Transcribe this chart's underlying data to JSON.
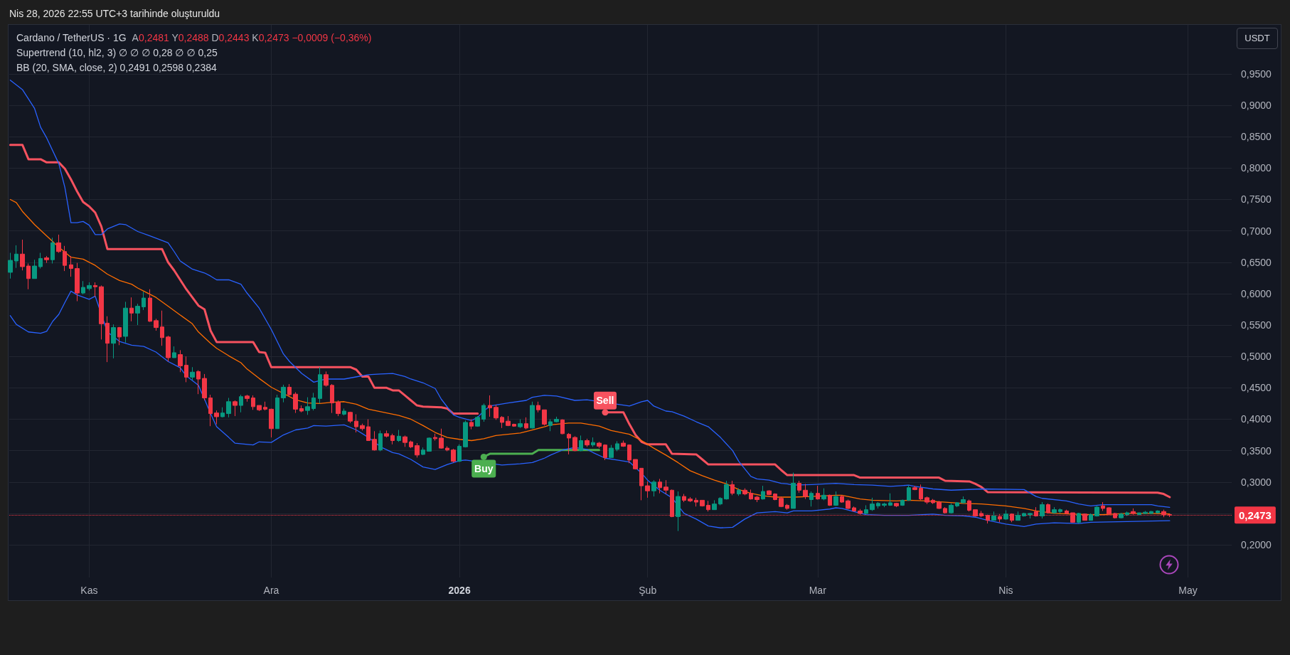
{
  "chart_data": {
    "type": "candlestick",
    "title": "Cardano / TetherUS · 1G",
    "ylabel": "USDT",
    "x": [
      "2025-10-19",
      "2025-10-20",
      "2025-10-21",
      "2025-10-22",
      "2025-10-23",
      "2025-10-24",
      "2025-10-25",
      "2025-10-26",
      "2025-10-27",
      "2025-10-28",
      "2025-10-29",
      "2025-10-30",
      "2025-10-31",
      "2025-11-01",
      "2025-11-02",
      "2025-11-03",
      "2025-11-04",
      "2025-11-05",
      "2025-11-06",
      "2025-11-07",
      "2025-11-08",
      "2025-11-09",
      "2025-11-10",
      "2025-11-11",
      "2025-11-12",
      "2025-11-13",
      "2025-11-14",
      "2025-11-15",
      "2025-11-16",
      "2025-11-17",
      "2025-11-18",
      "2025-11-19",
      "2025-11-20",
      "2025-11-21",
      "2025-11-22",
      "2025-11-23",
      "2025-11-24",
      "2025-11-25",
      "2025-11-26",
      "2025-11-27",
      "2025-11-28",
      "2025-11-29",
      "2025-11-30",
      "2025-12-01",
      "2025-12-02",
      "2025-12-03",
      "2025-12-04",
      "2025-12-05",
      "2025-12-06",
      "2025-12-07",
      "2025-12-08",
      "2025-12-09",
      "2025-12-10",
      "2025-12-11",
      "2025-12-12",
      "2025-12-13",
      "2025-12-14",
      "2025-12-15",
      "2025-12-16",
      "2025-12-17",
      "2025-12-18",
      "2025-12-19",
      "2025-12-20",
      "2025-12-21",
      "2025-12-22",
      "2025-12-23",
      "2025-12-24",
      "2025-12-25",
      "2025-12-26",
      "2025-12-27",
      "2025-12-28",
      "2025-12-29",
      "2025-12-30",
      "2025-12-31",
      "2026-01-01",
      "2026-01-02",
      "2026-01-03",
      "2026-01-04",
      "2026-01-05",
      "2026-01-06",
      "2026-01-07",
      "2026-01-08",
      "2026-01-09",
      "2026-01-10",
      "2026-01-11",
      "2026-01-12",
      "2026-01-13",
      "2026-01-14",
      "2026-01-15",
      "2026-01-16",
      "2026-01-17",
      "2026-01-18",
      "2026-01-19",
      "2026-01-20",
      "2026-01-21",
      "2026-01-22",
      "2026-01-23",
      "2026-01-24",
      "2026-01-25",
      "2026-01-26",
      "2026-01-27",
      "2026-01-28",
      "2026-01-29",
      "2026-01-30",
      "2026-01-31",
      "2026-02-01",
      "2026-02-02",
      "2026-02-03",
      "2026-02-04",
      "2026-02-05",
      "2026-02-06",
      "2026-02-07",
      "2026-02-08",
      "2026-02-09",
      "2026-02-10",
      "2026-02-11",
      "2026-02-12",
      "2026-02-13",
      "2026-02-14",
      "2026-02-15",
      "2026-02-16",
      "2026-02-17",
      "2026-02-18",
      "2026-02-19",
      "2026-02-20",
      "2026-02-21",
      "2026-02-22",
      "2026-02-23",
      "2026-02-24",
      "2026-02-25",
      "2026-02-26",
      "2026-02-27",
      "2026-02-28",
      "2026-03-01",
      "2026-03-02",
      "2026-03-03",
      "2026-03-04",
      "2026-03-05",
      "2026-03-06",
      "2026-03-07",
      "2026-03-08",
      "2026-03-09",
      "2026-03-10",
      "2026-03-11",
      "2026-03-12",
      "2026-03-13",
      "2026-03-14",
      "2026-03-15",
      "2026-03-16",
      "2026-03-17",
      "2026-03-18",
      "2026-03-19",
      "2026-03-20",
      "2026-03-21",
      "2026-03-22",
      "2026-03-23",
      "2026-03-24",
      "2026-03-25",
      "2026-03-26",
      "2026-03-27",
      "2026-03-28",
      "2026-03-29",
      "2026-03-30",
      "2026-03-31",
      "2026-04-01",
      "2026-04-02",
      "2026-04-03",
      "2026-04-04",
      "2026-04-05",
      "2026-04-06",
      "2026-04-07",
      "2026-04-08",
      "2026-04-09",
      "2026-04-10",
      "2026-04-11",
      "2026-04-12",
      "2026-04-13",
      "2026-04-14",
      "2026-04-15",
      "2026-04-16",
      "2026-04-17",
      "2026-04-18",
      "2026-04-19",
      "2026-04-20",
      "2026-04-21",
      "2026-04-22",
      "2026-04-23",
      "2026-04-24",
      "2026-04-25",
      "2026-04-26",
      "2026-04-27",
      "2026-04-28"
    ],
    "ohlc": [
      [
        0.634,
        0.665,
        0.624,
        0.653
      ],
      [
        0.652,
        0.677,
        0.641,
        0.663
      ],
      [
        0.663,
        0.686,
        0.637,
        0.643
      ],
      [
        0.644,
        0.648,
        0.607,
        0.624
      ],
      [
        0.624,
        0.654,
        0.624,
        0.644
      ],
      [
        0.643,
        0.665,
        0.64,
        0.656
      ],
      [
        0.657,
        0.66,
        0.649,
        0.654
      ],
      [
        0.654,
        0.689,
        0.648,
        0.681
      ],
      [
        0.681,
        0.694,
        0.665,
        0.667
      ],
      [
        0.667,
        0.676,
        0.636,
        0.645
      ],
      [
        0.646,
        0.66,
        0.627,
        0.64
      ],
      [
        0.64,
        0.649,
        0.588,
        0.601
      ],
      [
        0.601,
        0.62,
        0.599,
        0.61
      ],
      [
        0.608,
        0.618,
        0.605,
        0.613
      ],
      [
        0.613,
        0.618,
        0.595,
        0.611
      ],
      [
        0.611,
        0.613,
        0.527,
        0.552
      ],
      [
        0.553,
        0.564,
        0.491,
        0.521
      ],
      [
        0.521,
        0.551,
        0.497,
        0.546
      ],
      [
        0.546,
        0.547,
        0.518,
        0.531
      ],
      [
        0.532,
        0.587,
        0.522,
        0.577
      ],
      [
        0.577,
        0.594,
        0.556,
        0.569
      ],
      [
        0.569,
        0.584,
        0.55,
        0.58
      ],
      [
        0.579,
        0.603,
        0.574,
        0.593
      ],
      [
        0.593,
        0.607,
        0.555,
        0.556
      ],
      [
        0.557,
        0.56,
        0.541,
        0.546
      ],
      [
        0.547,
        0.573,
        0.517,
        0.53
      ],
      [
        0.531,
        0.533,
        0.492,
        0.498
      ],
      [
        0.498,
        0.516,
        0.498,
        0.506
      ],
      [
        0.503,
        0.51,
        0.475,
        0.485
      ],
      [
        0.486,
        0.5,
        0.459,
        0.467
      ],
      [
        0.467,
        0.483,
        0.462,
        0.475
      ],
      [
        0.476,
        0.478,
        0.44,
        0.464
      ],
      [
        0.465,
        0.472,
        0.43,
        0.434
      ],
      [
        0.434,
        0.439,
        0.389,
        0.409
      ],
      [
        0.41,
        0.414,
        0.392,
        0.404
      ],
      [
        0.404,
        0.419,
        0.403,
        0.41
      ],
      [
        0.409,
        0.434,
        0.403,
        0.428
      ],
      [
        0.428,
        0.43,
        0.405,
        0.422
      ],
      [
        0.422,
        0.439,
        0.411,
        0.436
      ],
      [
        0.437,
        0.439,
        0.428,
        0.433
      ],
      [
        0.434,
        0.438,
        0.415,
        0.42
      ],
      [
        0.422,
        0.422,
        0.413,
        0.415
      ],
      [
        0.419,
        0.428,
        0.414,
        0.416
      ],
      [
        0.416,
        0.417,
        0.371,
        0.385
      ],
      [
        0.385,
        0.439,
        0.385,
        0.434
      ],
      [
        0.434,
        0.455,
        0.427,
        0.451
      ],
      [
        0.451,
        0.456,
        0.437,
        0.439
      ],
      [
        0.44,
        0.443,
        0.41,
        0.416
      ],
      [
        0.417,
        0.422,
        0.411,
        0.413
      ],
      [
        0.414,
        0.435,
        0.407,
        0.42
      ],
      [
        0.417,
        0.442,
        0.414,
        0.434
      ],
      [
        0.433,
        0.483,
        0.425,
        0.471
      ],
      [
        0.471,
        0.476,
        0.452,
        0.454
      ],
      [
        0.454,
        0.456,
        0.41,
        0.426
      ],
      [
        0.427,
        0.43,
        0.405,
        0.409
      ],
      [
        0.408,
        0.417,
        0.406,
        0.413
      ],
      [
        0.411,
        0.412,
        0.394,
        0.397
      ],
      [
        0.397,
        0.408,
        0.379,
        0.388
      ],
      [
        0.39,
        0.393,
        0.382,
        0.385
      ],
      [
        0.388,
        0.4,
        0.366,
        0.366
      ],
      [
        0.368,
        0.381,
        0.35,
        0.351
      ],
      [
        0.351,
        0.382,
        0.349,
        0.377
      ],
      [
        0.377,
        0.382,
        0.371,
        0.373
      ],
      [
        0.374,
        0.377,
        0.36,
        0.366
      ],
      [
        0.366,
        0.383,
        0.364,
        0.373
      ],
      [
        0.372,
        0.374,
        0.356,
        0.363
      ],
      [
        0.364,
        0.366,
        0.354,
        0.356
      ],
      [
        0.358,
        0.362,
        0.339,
        0.343
      ],
      [
        0.344,
        0.355,
        0.343,
        0.351
      ],
      [
        0.349,
        0.371,
        0.349,
        0.37
      ],
      [
        0.371,
        0.377,
        0.366,
        0.369
      ],
      [
        0.37,
        0.385,
        0.353,
        0.354
      ],
      [
        0.354,
        0.357,
        0.349,
        0.351
      ],
      [
        0.351,
        0.353,
        0.331,
        0.333
      ],
      [
        0.333,
        0.36,
        0.332,
        0.357
      ],
      [
        0.356,
        0.398,
        0.355,
        0.395
      ],
      [
        0.395,
        0.4,
        0.384,
        0.389
      ],
      [
        0.389,
        0.405,
        0.388,
        0.403
      ],
      [
        0.4,
        0.425,
        0.396,
        0.422
      ],
      [
        0.422,
        0.438,
        0.404,
        0.418
      ],
      [
        0.419,
        0.423,
        0.399,
        0.402
      ],
      [
        0.403,
        0.405,
        0.386,
        0.395
      ],
      [
        0.397,
        0.405,
        0.389,
        0.39
      ],
      [
        0.392,
        0.393,
        0.388,
        0.389
      ],
      [
        0.388,
        0.4,
        0.386,
        0.393
      ],
      [
        0.393,
        0.403,
        0.384,
        0.386
      ],
      [
        0.386,
        0.428,
        0.385,
        0.422
      ],
      [
        0.422,
        0.428,
        0.411,
        0.415
      ],
      [
        0.415,
        0.415,
        0.39,
        0.392
      ],
      [
        0.39,
        0.4,
        0.381,
        0.396
      ],
      [
        0.396,
        0.404,
        0.395,
        0.4
      ],
      [
        0.399,
        0.4,
        0.376,
        0.377
      ],
      [
        0.376,
        0.378,
        0.344,
        0.37
      ],
      [
        0.371,
        0.373,
        0.349,
        0.35
      ],
      [
        0.35,
        0.374,
        0.349,
        0.366
      ],
      [
        0.366,
        0.369,
        0.356,
        0.359
      ],
      [
        0.359,
        0.371,
        0.356,
        0.363
      ],
      [
        0.362,
        0.364,
        0.354,
        0.357
      ],
      [
        0.359,
        0.36,
        0.335,
        0.339
      ],
      [
        0.339,
        0.359,
        0.339,
        0.354
      ],
      [
        0.352,
        0.365,
        0.349,
        0.361
      ],
      [
        0.362,
        0.366,
        0.356,
        0.357
      ],
      [
        0.359,
        0.36,
        0.33,
        0.335
      ],
      [
        0.336,
        0.336,
        0.32,
        0.321
      ],
      [
        0.322,
        0.322,
        0.271,
        0.294
      ],
      [
        0.294,
        0.301,
        0.275,
        0.286
      ],
      [
        0.286,
        0.303,
        0.277,
        0.3
      ],
      [
        0.3,
        0.305,
        0.282,
        0.291
      ],
      [
        0.292,
        0.303,
        0.281,
        0.287
      ],
      [
        0.287,
        0.288,
        0.244,
        0.245
      ],
      [
        0.245,
        0.285,
        0.222,
        0.277
      ],
      [
        0.277,
        0.281,
        0.268,
        0.271
      ],
      [
        0.273,
        0.276,
        0.268,
        0.27
      ],
      [
        0.271,
        0.275,
        0.261,
        0.268
      ],
      [
        0.271,
        0.271,
        0.261,
        0.262
      ],
      [
        0.263,
        0.27,
        0.253,
        0.256
      ],
      [
        0.256,
        0.271,
        0.256,
        0.265
      ],
      [
        0.265,
        0.276,
        0.263,
        0.274
      ],
      [
        0.273,
        0.302,
        0.272,
        0.296
      ],
      [
        0.296,
        0.302,
        0.279,
        0.282
      ],
      [
        0.281,
        0.29,
        0.278,
        0.287
      ],
      [
        0.287,
        0.29,
        0.279,
        0.281
      ],
      [
        0.282,
        0.288,
        0.272,
        0.273
      ],
      [
        0.276,
        0.278,
        0.268,
        0.272
      ],
      [
        0.273,
        0.294,
        0.272,
        0.285
      ],
      [
        0.286,
        0.287,
        0.279,
        0.28
      ],
      [
        0.281,
        0.282,
        0.271,
        0.272
      ],
      [
        0.274,
        0.277,
        0.26,
        0.261
      ],
      [
        0.263,
        0.265,
        0.256,
        0.258
      ],
      [
        0.258,
        0.315,
        0.258,
        0.298
      ],
      [
        0.298,
        0.302,
        0.283,
        0.287
      ],
      [
        0.287,
        0.297,
        0.273,
        0.277
      ],
      [
        0.272,
        0.285,
        0.261,
        0.282
      ],
      [
        0.282,
        0.294,
        0.272,
        0.273
      ],
      [
        0.273,
        0.29,
        0.271,
        0.279
      ],
      [
        0.279,
        0.28,
        0.262,
        0.263
      ],
      [
        0.263,
        0.285,
        0.262,
        0.277
      ],
      [
        0.277,
        0.279,
        0.267,
        0.268
      ],
      [
        0.27,
        0.272,
        0.257,
        0.258
      ],
      [
        0.259,
        0.261,
        0.253,
        0.254
      ],
      [
        0.254,
        0.257,
        0.248,
        0.25
      ],
      [
        0.25,
        0.263,
        0.249,
        0.256
      ],
      [
        0.256,
        0.275,
        0.254,
        0.265
      ],
      [
        0.262,
        0.268,
        0.258,
        0.266
      ],
      [
        0.263,
        0.267,
        0.26,
        0.265
      ],
      [
        0.263,
        0.282,
        0.262,
        0.267
      ],
      [
        0.266,
        0.267,
        0.26,
        0.262
      ],
      [
        0.263,
        0.272,
        0.262,
        0.271
      ],
      [
        0.271,
        0.295,
        0.27,
        0.291
      ],
      [
        0.291,
        0.294,
        0.287,
        0.288
      ],
      [
        0.29,
        0.296,
        0.271,
        0.273
      ],
      [
        0.275,
        0.277,
        0.265,
        0.268
      ],
      [
        0.271,
        0.273,
        0.265,
        0.267
      ],
      [
        0.268,
        0.27,
        0.257,
        0.258
      ],
      [
        0.258,
        0.26,
        0.25,
        0.251
      ],
      [
        0.251,
        0.266,
        0.25,
        0.263
      ],
      [
        0.262,
        0.268,
        0.26,
        0.267
      ],
      [
        0.267,
        0.277,
        0.266,
        0.272
      ],
      [
        0.27,
        0.272,
        0.253,
        0.255
      ],
      [
        0.256,
        0.256,
        0.245,
        0.246
      ],
      [
        0.25,
        0.254,
        0.244,
        0.246
      ],
      [
        0.247,
        0.248,
        0.234,
        0.239
      ],
      [
        0.239,
        0.253,
        0.239,
        0.246
      ],
      [
        0.245,
        0.249,
        0.236,
        0.241
      ],
      [
        0.241,
        0.255,
        0.24,
        0.249
      ],
      [
        0.249,
        0.25,
        0.236,
        0.239
      ],
      [
        0.239,
        0.253,
        0.239,
        0.247
      ],
      [
        0.246,
        0.251,
        0.245,
        0.25
      ],
      [
        0.248,
        0.251,
        0.242,
        0.25
      ],
      [
        0.253,
        0.26,
        0.245,
        0.246
      ],
      [
        0.246,
        0.268,
        0.242,
        0.264
      ],
      [
        0.264,
        0.266,
        0.25,
        0.251
      ],
      [
        0.251,
        0.26,
        0.25,
        0.256
      ],
      [
        0.253,
        0.258,
        0.25,
        0.256
      ],
      [
        0.254,
        0.256,
        0.249,
        0.25
      ],
      [
        0.251,
        0.251,
        0.235,
        0.236
      ],
      [
        0.236,
        0.251,
        0.234,
        0.25
      ],
      [
        0.249,
        0.25,
        0.239,
        0.239
      ],
      [
        0.239,
        0.25,
        0.239,
        0.248
      ],
      [
        0.246,
        0.262,
        0.245,
        0.26
      ],
      [
        0.262,
        0.268,
        0.254,
        0.258
      ],
      [
        0.259,
        0.26,
        0.248,
        0.249
      ],
      [
        0.25,
        0.251,
        0.242,
        0.243
      ],
      [
        0.243,
        0.251,
        0.242,
        0.249
      ],
      [
        0.248,
        0.253,
        0.246,
        0.251
      ],
      [
        0.253,
        0.258,
        0.248,
        0.25
      ],
      [
        0.248,
        0.251,
        0.247,
        0.251
      ],
      [
        0.25,
        0.254,
        0.249,
        0.252
      ],
      [
        0.25,
        0.254,
        0.249,
        0.253
      ],
      [
        0.251,
        0.255,
        0.25,
        0.254
      ],
      [
        0.253,
        0.256,
        0.244,
        0.2482
      ],
      [
        0.2481,
        0.2488,
        0.2443,
        0.2473
      ]
    ],
    "colors": [
      "#089981",
      "#089981",
      "#f23645",
      "#f23645",
      "#089981",
      "#089981",
      "#f23645",
      "#089981",
      "#f23645",
      "#f23645",
      "#f23645",
      "#f23645",
      "#089981",
      "#089981",
      "#f23645",
      "#f23645",
      "#f23645",
      "#089981",
      "#f23645",
      "#089981",
      "#f23645",
      "#089981",
      "#089981",
      "#f23645",
      "#f23645",
      "#f23645",
      "#f23645",
      "#089981",
      "#f23645",
      "#f23645",
      "#089981",
      "#f23645",
      "#f23645",
      "#f23645",
      "#f23645",
      "#089981",
      "#089981",
      "#f23645",
      "#089981",
      "#f23645",
      "#f23645",
      "#f23645",
      "#f23645",
      "#f23645",
      "#089981",
      "#089981",
      "#f23645",
      "#f23645",
      "#f23645",
      "#089981",
      "#089981",
      "#089981",
      "#f23645",
      "#f23645",
      "#f23645",
      "#089981",
      "#f23645",
      "#f23645",
      "#f23645",
      "#f23645",
      "#f23645",
      "#089981",
      "#f23645",
      "#f23645",
      "#089981",
      "#f23645",
      "#f23645",
      "#f23645",
      "#089981",
      "#089981",
      "#f23645",
      "#f23645",
      "#f23645",
      "#f23645",
      "#089981",
      "#089981",
      "#f23645",
      "#089981",
      "#089981",
      "#f23645",
      "#f23645",
      "#f23645",
      "#f23645",
      "#f23645",
      "#089981",
      "#f23645",
      "#089981",
      "#f23645",
      "#f23645",
      "#089981",
      "#089981",
      "#f23645",
      "#f23645",
      "#f23645",
      "#089981",
      "#f23645",
      "#089981",
      "#f23645",
      "#f23645",
      "#089981",
      "#089981",
      "#f23645",
      "#f23645",
      "#f23645",
      "#f23645",
      "#f23645",
      "#089981",
      "#f23645",
      "#f23645",
      "#f23645",
      "#089981",
      "#f23645",
      "#f23645",
      "#f23645",
      "#f23645",
      "#f23645",
      "#089981",
      "#089981",
      "#089981",
      "#f23645",
      "#089981",
      "#f23645",
      "#f23645",
      "#f23645",
      "#089981",
      "#f23645",
      "#f23645",
      "#f23645",
      "#f23645",
      "#089981",
      "#f23645",
      "#f23645",
      "#089981",
      "#f23645",
      "#089981",
      "#f23645",
      "#089981",
      "#f23645",
      "#f23645",
      "#f23645",
      "#f23645",
      "#089981",
      "#089981",
      "#089981",
      "#089981",
      "#089981",
      "#f23645",
      "#089981",
      "#089981",
      "#f23645",
      "#f23645",
      "#f23645",
      "#f23645",
      "#f23645",
      "#f23645",
      "#089981",
      "#089981",
      "#089981",
      "#f23645",
      "#f23645",
      "#f23645",
      "#f23645",
      "#089981",
      "#f23645",
      "#089981",
      "#f23645",
      "#089981",
      "#089981",
      "#089981",
      "#f23645",
      "#089981",
      "#f23645",
      "#089981",
      "#089981",
      "#f23645",
      "#f23645",
      "#089981",
      "#f23645",
      "#089981",
      "#089981",
      "#f23645",
      "#f23645",
      "#f23645",
      "#089981",
      "#089981",
      "#f23645",
      "#089981",
      "#089981",
      "#089981",
      "#089981",
      "#f23645",
      "#f23645"
    ],
    "series": [
      {
        "type": "line",
        "color": "#f7525f",
        "x": [
          "2025-10-19",
          "2025-10-21",
          "2025-10-22",
          "2025-10-24",
          "2025-10-25",
          "2025-10-27",
          "2025-10-28",
          "2025-10-29",
          "2025-10-30",
          "2025-10-31",
          "2025-11-01",
          "2025-11-02",
          "2025-11-03",
          "2025-11-04",
          "2025-11-13",
          "2025-11-14",
          "2025-11-15",
          "2025-11-16",
          "2025-11-17",
          "2025-11-18",
          "2025-11-19",
          "2025-11-20",
          "2025-11-21",
          "2025-11-22",
          "2025-11-28",
          "2025-11-29",
          "2025-11-30",
          "2025-12-01",
          "2025-12-14",
          "2025-12-15",
          "2025-12-16",
          "2025-12-17",
          "2025-12-18",
          "2025-12-20",
          "2025-12-21",
          "2025-12-22",
          "2025-12-23",
          "2025-12-24",
          "2025-12-25",
          "2025-12-26",
          "2025-12-29",
          "2025-12-30",
          "2025-12-31",
          "2026-01-04",
          "2026-01-05",
          "2026-01-25",
          "2026-01-28",
          "2026-01-29",
          "2026-01-30",
          "2026-01-31",
          "2026-02-01",
          "2026-02-04",
          "2026-02-05",
          "2026-02-09",
          "2026-02-10",
          "2026-02-11",
          "2026-02-22",
          "2026-02-23",
          "2026-02-24",
          "2026-03-07",
          "2026-03-08",
          "2026-03-21",
          "2026-03-22",
          "2026-03-26",
          "2026-03-27",
          "2026-03-28",
          "2026-03-29",
          "2026-04-26",
          "2026-04-27",
          "2026-04-28"
        ],
        "values": [
          0.837,
          0.837,
          0.814,
          0.814,
          0.809,
          0.809,
          0.799,
          0.782,
          0.763,
          0.746,
          0.739,
          0.729,
          0.707,
          0.671,
          0.671,
          0.65,
          0.637,
          0.622,
          0.607,
          0.594,
          0.581,
          0.575,
          0.541,
          0.523,
          0.523,
          0.507,
          0.506,
          0.483,
          0.483,
          0.479,
          0.468,
          0.468,
          0.45,
          0.45,
          0.446,
          0.446,
          0.438,
          0.43,
          0.422,
          0.42,
          0.419,
          0.417,
          0.409,
          0.409,
          null,
          0.411,
          0.411,
          0.392,
          0.375,
          0.364,
          0.36,
          0.36,
          0.345,
          0.344,
          0.336,
          0.328,
          0.328,
          0.319,
          0.311,
          0.311,
          0.307,
          0.307,
          0.302,
          0.301,
          0.297,
          0.292,
          0.284,
          0.283,
          0.281,
          0.276
        ]
      },
      {
        "type": "line",
        "color": "#4caf50",
        "x": [
          "2026-01-05",
          "2026-01-06",
          "2026-01-13",
          "2026-01-14",
          "2026-01-24"
        ],
        "values": [
          0.34,
          0.345,
          0.345,
          0.351,
          0.351
        ]
      },
      {
        "type": "line",
        "color": "#2962ff",
        "x": [
          "2025-10-19",
          "2025-10-21",
          "2025-10-23",
          "2025-10-24",
          "2025-10-25",
          "2025-10-27",
          "2025-10-28",
          "2025-10-29",
          "2025-10-30",
          "2025-10-31",
          "2025-11-01",
          "2025-11-02",
          "2025-11-03",
          "2025-11-04",
          "2025-11-06",
          "2025-11-07",
          "2025-11-09",
          "2025-11-11",
          "2025-11-14",
          "2025-11-15",
          "2025-11-16",
          "2025-11-18",
          "2025-11-20",
          "2025-11-21",
          "2025-11-22",
          "2025-11-24",
          "2025-11-26",
          "2025-11-27",
          "2025-11-29",
          "2025-12-01",
          "2025-12-03",
          "2025-12-04",
          "2025-12-06",
          "2025-12-08",
          "2025-12-10",
          "2025-12-13",
          "2025-12-17",
          "2025-12-19",
          "2025-12-21",
          "2025-12-23",
          "2025-12-24",
          "2025-12-26",
          "2025-12-28",
          "2025-12-29",
          "2025-12-31",
          "2026-01-01",
          "2026-01-03",
          "2026-01-04",
          "2026-01-05",
          "2026-01-06",
          "2026-01-09",
          "2026-01-12",
          "2026-01-13",
          "2026-01-15",
          "2026-01-17",
          "2026-01-20",
          "2026-01-22",
          "2026-01-29",
          "2026-01-31",
          "2026-02-01",
          "2026-02-02",
          "2026-02-04",
          "2026-02-05",
          "2026-02-07",
          "2026-02-09",
          "2026-02-11",
          "2026-02-13",
          "2026-02-15",
          "2026-02-16",
          "2026-02-18",
          "2026-02-19",
          "2026-02-21",
          "2026-02-23",
          "2026-02-24",
          "2026-02-25",
          "2026-02-28",
          "2026-03-04",
          "2026-03-07",
          "2026-03-10",
          "2026-03-13",
          "2026-03-16",
          "2026-03-17",
          "2026-03-20",
          "2026-03-23",
          "2026-03-28",
          "2026-04-04",
          "2026-04-06",
          "2026-04-07",
          "2026-04-11",
          "2026-04-13",
          "2026-04-15",
          "2026-04-17",
          "2026-04-25",
          "2026-04-26",
          "2026-04-28"
        ],
        "values": [
          0.94,
          0.925,
          0.895,
          0.865,
          0.848,
          0.807,
          0.769,
          0.713,
          0.713,
          0.715,
          0.709,
          0.694,
          0.694,
          0.703,
          0.711,
          0.71,
          0.699,
          0.692,
          0.681,
          0.667,
          0.652,
          0.639,
          0.633,
          0.628,
          0.622,
          0.622,
          0.615,
          0.601,
          0.577,
          0.543,
          0.504,
          0.492,
          0.473,
          0.459,
          0.464,
          0.464,
          0.471,
          0.472,
          0.473,
          0.468,
          0.464,
          0.458,
          0.449,
          0.432,
          0.407,
          0.403,
          0.398,
          0.403,
          0.413,
          0.421,
          0.426,
          0.43,
          0.435,
          0.438,
          0.437,
          0.43,
          0.431,
          0.421,
          0.428,
          0.43,
          0.421,
          0.413,
          0.412,
          0.405,
          0.396,
          0.388,
          0.371,
          0.35,
          0.333,
          0.309,
          0.305,
          0.303,
          0.298,
          0.297,
          0.295,
          0.296,
          0.298,
          0.296,
          0.295,
          0.293,
          0.295,
          0.293,
          0.289,
          0.287,
          0.289,
          0.288,
          0.277,
          0.274,
          0.27,
          0.265,
          0.262,
          0.264,
          0.264,
          0.262,
          0.2598
        ]
      },
      {
        "type": "line",
        "color": "#ff6d00",
        "x": [
          "2025-10-19",
          "2025-10-20",
          "2025-10-21",
          "2025-10-23",
          "2025-10-25",
          "2025-10-27",
          "2025-10-29",
          "2025-10-31",
          "2025-11-02",
          "2025-11-04",
          "2025-11-06",
          "2025-11-08",
          "2025-11-09",
          "2025-11-10",
          "2025-11-12",
          "2025-11-14",
          "2025-11-16",
          "2025-11-18",
          "2025-11-19",
          "2025-11-21",
          "2025-11-22",
          "2025-11-24",
          "2025-11-26",
          "2025-11-27",
          "2025-11-29",
          "2025-12-01",
          "2025-12-03",
          "2025-12-05",
          "2025-12-07",
          "2025-12-09",
          "2025-12-11",
          "2025-12-13",
          "2025-12-15",
          "2025-12-17",
          "2025-12-20",
          "2025-12-22",
          "2025-12-24",
          "2025-12-26",
          "2025-12-28",
          "2025-12-30",
          "2026-01-01",
          "2026-01-03",
          "2026-01-05",
          "2026-01-07",
          "2026-01-09",
          "2026-01-11",
          "2026-01-13",
          "2026-01-15",
          "2026-01-16",
          "2026-01-19",
          "2026-01-21",
          "2026-01-24",
          "2026-01-26",
          "2026-01-29",
          "2026-01-31",
          "2026-02-02",
          "2026-02-04",
          "2026-02-06",
          "2026-02-08",
          "2026-02-10",
          "2026-02-12",
          "2026-02-14",
          "2026-02-16",
          "2026-02-18",
          "2026-02-20",
          "2026-02-22",
          "2026-02-25",
          "2026-02-28",
          "2026-03-04",
          "2026-03-05",
          "2026-03-08",
          "2026-03-10",
          "2026-03-14",
          "2026-03-16",
          "2026-03-19",
          "2026-03-22",
          "2026-03-25",
          "2026-03-28",
          "2026-04-01",
          "2026-04-04",
          "2026-04-06",
          "2026-04-09",
          "2026-04-12",
          "2026-04-15",
          "2026-04-17",
          "2026-04-21",
          "2026-04-25",
          "2026-04-28"
        ],
        "values": [
          0.75,
          0.745,
          0.731,
          0.71,
          0.692,
          0.674,
          0.658,
          0.655,
          0.645,
          0.631,
          0.621,
          0.615,
          0.609,
          0.604,
          0.594,
          0.58,
          0.566,
          0.552,
          0.539,
          0.521,
          0.513,
          0.501,
          0.49,
          0.48,
          0.465,
          0.451,
          0.441,
          0.431,
          0.426,
          0.425,
          0.427,
          0.428,
          0.424,
          0.416,
          0.41,
          0.406,
          0.4,
          0.39,
          0.379,
          0.371,
          0.368,
          0.366,
          0.369,
          0.374,
          0.376,
          0.378,
          0.383,
          0.388,
          0.391,
          0.394,
          0.394,
          0.389,
          0.382,
          0.376,
          0.366,
          0.354,
          0.343,
          0.331,
          0.318,
          0.31,
          0.303,
          0.297,
          0.288,
          0.282,
          0.278,
          0.276,
          0.276,
          0.277,
          0.279,
          0.279,
          0.273,
          0.271,
          0.27,
          0.271,
          0.27,
          0.268,
          0.266,
          0.265,
          0.262,
          0.258,
          0.254,
          0.25,
          0.249,
          0.248,
          0.248,
          0.25,
          0.25,
          0.2491
        ]
      },
      {
        "type": "line",
        "color": "#2962ff",
        "x": [
          "2025-10-19",
          "2025-10-20",
          "2025-10-22",
          "2025-10-24",
          "2025-10-25",
          "2025-10-26",
          "2025-10-27",
          "2025-10-28",
          "2025-10-29",
          "2025-10-30",
          "2025-11-01",
          "2025-11-02",
          "2025-11-04",
          "2025-11-06",
          "2025-11-08",
          "2025-11-10",
          "2025-11-12",
          "2025-11-14",
          "2025-11-16",
          "2025-11-17",
          "2025-11-19",
          "2025-11-20",
          "2025-11-21",
          "2025-11-22",
          "2025-11-24",
          "2025-11-25",
          "2025-11-28",
          "2025-11-29",
          "2025-12-01",
          "2025-12-03",
          "2025-12-05",
          "2025-12-07",
          "2025-12-08",
          "2025-12-10",
          "2025-12-13",
          "2025-12-15",
          "2025-12-17",
          "2025-12-19",
          "2025-12-21",
          "2025-12-22",
          "2025-12-24",
          "2025-12-26",
          "2025-12-28",
          "2025-12-30",
          "2026-01-01",
          "2026-01-02",
          "2026-01-08",
          "2026-01-11",
          "2026-01-13",
          "2026-01-15",
          "2026-01-16",
          "2026-01-18",
          "2026-01-20",
          "2026-01-22",
          "2026-01-23",
          "2026-01-25",
          "2026-01-27",
          "2026-01-29",
          "2026-01-31",
          "2026-02-01",
          "2026-02-03",
          "2026-02-05",
          "2026-02-07",
          "2026-02-09",
          "2026-02-11",
          "2026-02-13",
          "2026-02-15",
          "2026-02-17",
          "2026-02-19",
          "2026-02-22",
          "2026-02-24",
          "2026-02-25",
          "2026-02-28",
          "2026-03-03",
          "2026-03-04",
          "2026-03-05",
          "2026-03-07",
          "2026-03-09",
          "2026-03-12",
          "2026-03-16",
          "2026-03-20",
          "2026-03-22",
          "2026-03-25",
          "2026-03-27",
          "2026-03-29",
          "2026-04-01",
          "2026-04-04",
          "2026-04-06",
          "2026-04-09",
          "2026-04-13",
          "2026-04-15",
          "2026-04-21",
          "2026-04-25",
          "2026-04-28"
        ],
        "values": [
          0.565,
          0.551,
          0.539,
          0.537,
          0.54,
          0.556,
          0.567,
          0.586,
          0.604,
          0.598,
          0.591,
          0.596,
          0.539,
          0.524,
          0.518,
          0.516,
          0.507,
          0.492,
          0.482,
          0.469,
          0.454,
          0.432,
          0.409,
          0.388,
          0.371,
          0.362,
          0.359,
          0.364,
          0.363,
          0.375,
          0.383,
          0.386,
          0.39,
          0.389,
          0.391,
          0.383,
          0.371,
          0.356,
          0.347,
          0.345,
          0.336,
          0.324,
          0.32,
          0.328,
          0.334,
          0.335,
          0.327,
          0.329,
          0.331,
          0.338,
          0.343,
          0.351,
          0.355,
          0.352,
          0.347,
          0.338,
          0.335,
          0.332,
          0.314,
          0.303,
          0.287,
          0.275,
          0.25,
          0.241,
          0.23,
          0.227,
          0.228,
          0.241,
          0.251,
          0.253,
          0.251,
          0.254,
          0.254,
          0.257,
          0.259,
          0.258,
          0.253,
          0.248,
          0.247,
          0.247,
          0.249,
          0.247,
          0.246,
          0.244,
          0.239,
          0.233,
          0.229,
          0.233,
          0.235,
          0.234,
          0.236,
          0.237,
          0.238,
          0.2384
        ]
      }
    ],
    "xlim": [
      "2025-10-18T20:00",
      "2026-05-08T05:00"
    ],
    "xticks": [
      {
        "value": "2025-11-01",
        "label": "Kas"
      },
      {
        "value": "2025-12-01",
        "label": "Ara"
      },
      {
        "value": "2026-01-01",
        "label": "2026"
      },
      {
        "value": "2026-02-01",
        "label": "Şub"
      },
      {
        "value": "2026-03-01",
        "label": "Mar"
      },
      {
        "value": "2026-04-01",
        "label": "Nis"
      },
      {
        "value": "2026-05-01",
        "label": "May"
      }
    ],
    "ylim": [
      0.148,
      1.028
    ],
    "yticks": [
      {
        "value": 0.2,
        "label": "0,2000"
      },
      {
        "value": 0.25,
        "label": null
      },
      {
        "value": 0.3,
        "label": "0,3000"
      },
      {
        "value": 0.35,
        "label": "0,3500"
      },
      {
        "value": 0.4,
        "label": "0,4000"
      },
      {
        "value": 0.45,
        "label": "0,4500"
      },
      {
        "value": 0.5,
        "label": "0,5000"
      },
      {
        "value": 0.55,
        "label": "0,5500"
      },
      {
        "value": 0.6,
        "label": "0,6000"
      },
      {
        "value": 0.65,
        "label": "0,6500"
      },
      {
        "value": 0.7,
        "label": "0,7000"
      },
      {
        "value": 0.75,
        "label": "0,7500"
      },
      {
        "value": 0.8,
        "label": "0,8000"
      },
      {
        "value": 0.85,
        "label": "0,8500"
      },
      {
        "value": 0.9,
        "label": "0,9000"
      },
      {
        "value": 0.95,
        "label": "0,9500"
      }
    ],
    "grid": true,
    "ref_lines": [
      {
        "axis": "y",
        "value": 0.2473,
        "label": "0,2473",
        "color": "#f23645",
        "line_style": "dotted"
      }
    ],
    "annotations": [
      "Nis 28, 2026 22:55 UTC+3 tarihinde oluşturuldu",
      "A0,2481 Y0,2488 D0,2443 K0,2473 −0,0009 (−0,36%)",
      "Supertrend (10, hl2, 3) ∅ ∅ ∅ 0,28 ∅ ∅ 0,25",
      "BB (20, SMA, close, 2) 0,2491 0,2598 0,2384",
      {
        "text": "Buy",
        "x": "2026-01-05",
        "y": 0.34
      },
      {
        "text": "Sell",
        "x": "2026-01-25",
        "y": 0.411
      }
    ]
  }
}
